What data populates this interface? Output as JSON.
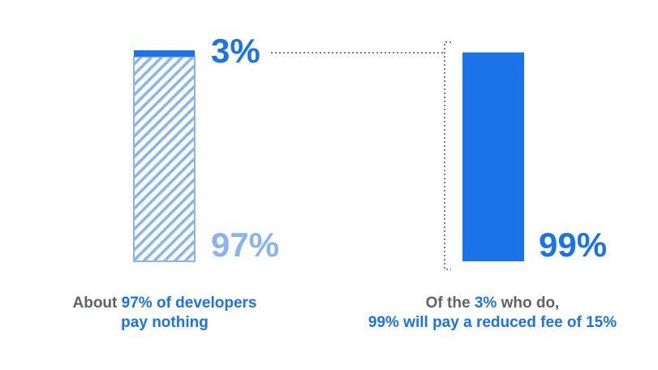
{
  "chart_data": [
    {
      "type": "stacked-bar",
      "values": [
        97,
        3
      ],
      "value_labels": [
        "97%",
        "3%"
      ],
      "colors": [
        "#8ab4f0",
        "#1a73e8"
      ],
      "ylim": [
        0,
        100
      ],
      "caption": [
        [
          {
            "text": "About ",
            "color": "#5f6368"
          },
          {
            "text": "97% of developers",
            "color": "#1a73e8"
          }
        ],
        [
          {
            "text": "pay nothing",
            "color": "#1a73e8"
          }
        ]
      ]
    },
    {
      "type": "bar",
      "values": [
        99
      ],
      "value_labels": [
        "99%"
      ],
      "colors": [
        "#1a73e8"
      ],
      "ylim": [
        0,
        100
      ],
      "caption": [
        [
          {
            "text": "Of the ",
            "color": "#5f6368"
          },
          {
            "text": "3%",
            "color": "#1a73e8"
          },
          {
            "text": " who do,",
            "color": "#5f6368"
          }
        ],
        [
          {
            "text": "99% will pay a reduced fee of 15%",
            "color": "#1a73e8"
          }
        ]
      ]
    }
  ]
}
